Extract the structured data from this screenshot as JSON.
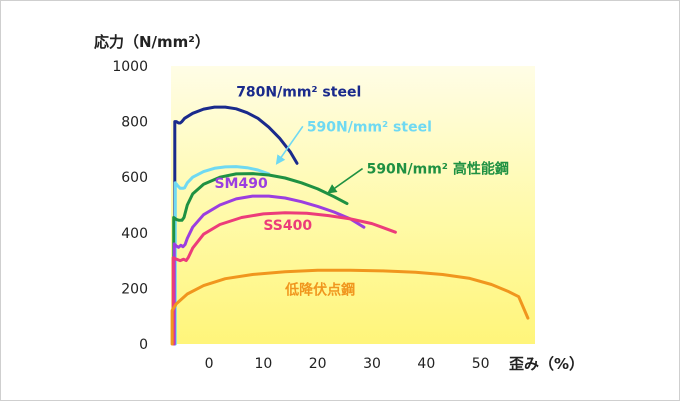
{
  "chart_data": {
    "type": "line",
    "ylabel": "応力（N/mm²）",
    "xlabel": "歪み（%）",
    "xlim": [
      -7,
      60
    ],
    "ylim": [
      0,
      1000
    ],
    "x_ticks": [
      0,
      10,
      20,
      30,
      40,
      50
    ],
    "y_ticks": [
      0,
      200,
      400,
      600,
      800,
      1000
    ],
    "grid": false,
    "background": "gradient-yellow",
    "series": [
      {
        "name": "780N/mm² steel",
        "color": "#1a2a8c",
        "points": [
          [
            -6.3,
            0
          ],
          [
            -6.3,
            800
          ],
          [
            -6.0,
            800
          ],
          [
            -5.6,
            795
          ],
          [
            -5.3,
            795
          ],
          [
            -5.0,
            800
          ],
          [
            -4.5,
            812
          ],
          [
            -3.0,
            830
          ],
          [
            -1.0,
            845
          ],
          [
            1.0,
            852
          ],
          [
            3.0,
            852
          ],
          [
            5.0,
            846
          ],
          [
            7.0,
            832
          ],
          [
            9.0,
            812
          ],
          [
            11.0,
            780
          ],
          [
            13.0,
            740
          ],
          [
            15.0,
            690
          ],
          [
            16.2,
            650
          ]
        ]
      },
      {
        "name": "590N/mm² steel",
        "color": "#6fd9f2",
        "points": [
          [
            -6.2,
            0
          ],
          [
            -6.2,
            580
          ],
          [
            -5.8,
            570
          ],
          [
            -5.3,
            560
          ],
          [
            -4.8,
            560
          ],
          [
            -4.5,
            562
          ],
          [
            -4.0,
            580
          ],
          [
            -3.0,
            600
          ],
          [
            -1.0,
            620
          ],
          [
            1.0,
            632
          ],
          [
            3.0,
            637
          ],
          [
            5.0,
            638
          ],
          [
            7.0,
            634
          ],
          [
            9.0,
            626
          ],
          [
            11.0,
            612
          ]
        ]
      },
      {
        "name": "590N/mm² 高性能鋼",
        "color": "#1f9142",
        "points": [
          [
            -6.5,
            0
          ],
          [
            -6.5,
            455
          ],
          [
            -6.0,
            448
          ],
          [
            -5.5,
            445
          ],
          [
            -5.0,
            445
          ],
          [
            -4.6,
            455
          ],
          [
            -4.0,
            500
          ],
          [
            -3.0,
            540
          ],
          [
            -1.0,
            575
          ],
          [
            2.0,
            600
          ],
          [
            5.0,
            612
          ],
          [
            8.0,
            613
          ],
          [
            11.0,
            608
          ],
          [
            14.0,
            597
          ],
          [
            17.0,
            580
          ],
          [
            20.0,
            558
          ],
          [
            23.0,
            530
          ],
          [
            25.4,
            505
          ]
        ]
      },
      {
        "name": "SM490",
        "color": "#9b3ee0",
        "points": [
          [
            -6.4,
            0
          ],
          [
            -6.4,
            360
          ],
          [
            -6.0,
            352
          ],
          [
            -5.6,
            348
          ],
          [
            -5.2,
            355
          ],
          [
            -4.8,
            350
          ],
          [
            -4.4,
            358
          ],
          [
            -4.0,
            380
          ],
          [
            -3.0,
            420
          ],
          [
            -1.0,
            465
          ],
          [
            2.0,
            500
          ],
          [
            5.0,
            522
          ],
          [
            8.0,
            532
          ],
          [
            11.0,
            532
          ],
          [
            14.0,
            525
          ],
          [
            17.0,
            512
          ],
          [
            20.0,
            495
          ],
          [
            23.0,
            475
          ],
          [
            26.0,
            450
          ],
          [
            28.5,
            420
          ]
        ]
      },
      {
        "name": "SS400",
        "color": "#ec3c7a",
        "points": [
          [
            -6.6,
            0
          ],
          [
            -6.6,
            310
          ],
          [
            -6.0,
            305
          ],
          [
            -5.3,
            300
          ],
          [
            -4.7,
            305
          ],
          [
            -4.2,
            300
          ],
          [
            -3.8,
            312
          ],
          [
            -3.0,
            345
          ],
          [
            -1.0,
            395
          ],
          [
            2.0,
            430
          ],
          [
            6.0,
            455
          ],
          [
            10.0,
            468
          ],
          [
            14.0,
            472
          ],
          [
            18.0,
            470
          ],
          [
            22.0,
            462
          ],
          [
            26.0,
            450
          ],
          [
            30.0,
            433
          ],
          [
            34.3,
            402
          ]
        ]
      },
      {
        "name": "低降伏点鋼",
        "color": "#f0961e",
        "points": [
          [
            -6.8,
            0
          ],
          [
            -6.8,
            120
          ],
          [
            -6.0,
            145
          ],
          [
            -4.0,
            180
          ],
          [
            -1.0,
            210
          ],
          [
            3.0,
            235
          ],
          [
            8.0,
            250
          ],
          [
            14.0,
            260
          ],
          [
            20.0,
            265
          ],
          [
            26.0,
            265
          ],
          [
            32.0,
            263
          ],
          [
            38.0,
            258
          ],
          [
            43.0,
            250
          ],
          [
            48.0,
            236
          ],
          [
            52.0,
            214
          ],
          [
            55.0,
            190
          ],
          [
            57.0,
            170
          ],
          [
            58.7,
            93
          ]
        ]
      }
    ],
    "annotations": [
      {
        "text": "780N/mm² steel",
        "series": 0,
        "x": 5.0,
        "y": 890,
        "color": "#1a2a8c"
      },
      {
        "text": "590N/mm² steel",
        "series": 1,
        "x": 18.0,
        "y": 765,
        "color": "#6fd9f2",
        "arrow_to": [
          12.5,
          650
        ]
      },
      {
        "text": "590N/mm² 高性能鋼",
        "series": 2,
        "x": 29.0,
        "y": 613,
        "color": "#1f9142",
        "arrow_to": [
          22.0,
          545
        ]
      },
      {
        "text": "SM490",
        "series": 3,
        "x": 1.0,
        "y": 562,
        "color": "#9b3ee0"
      },
      {
        "text": "SS400",
        "series": 4,
        "x": 10.0,
        "y": 410,
        "color": "#ec3c7a"
      },
      {
        "text": "低降伏点鋼",
        "series": 5,
        "x": 14.0,
        "y": 178,
        "color": "#f0961e"
      }
    ]
  }
}
